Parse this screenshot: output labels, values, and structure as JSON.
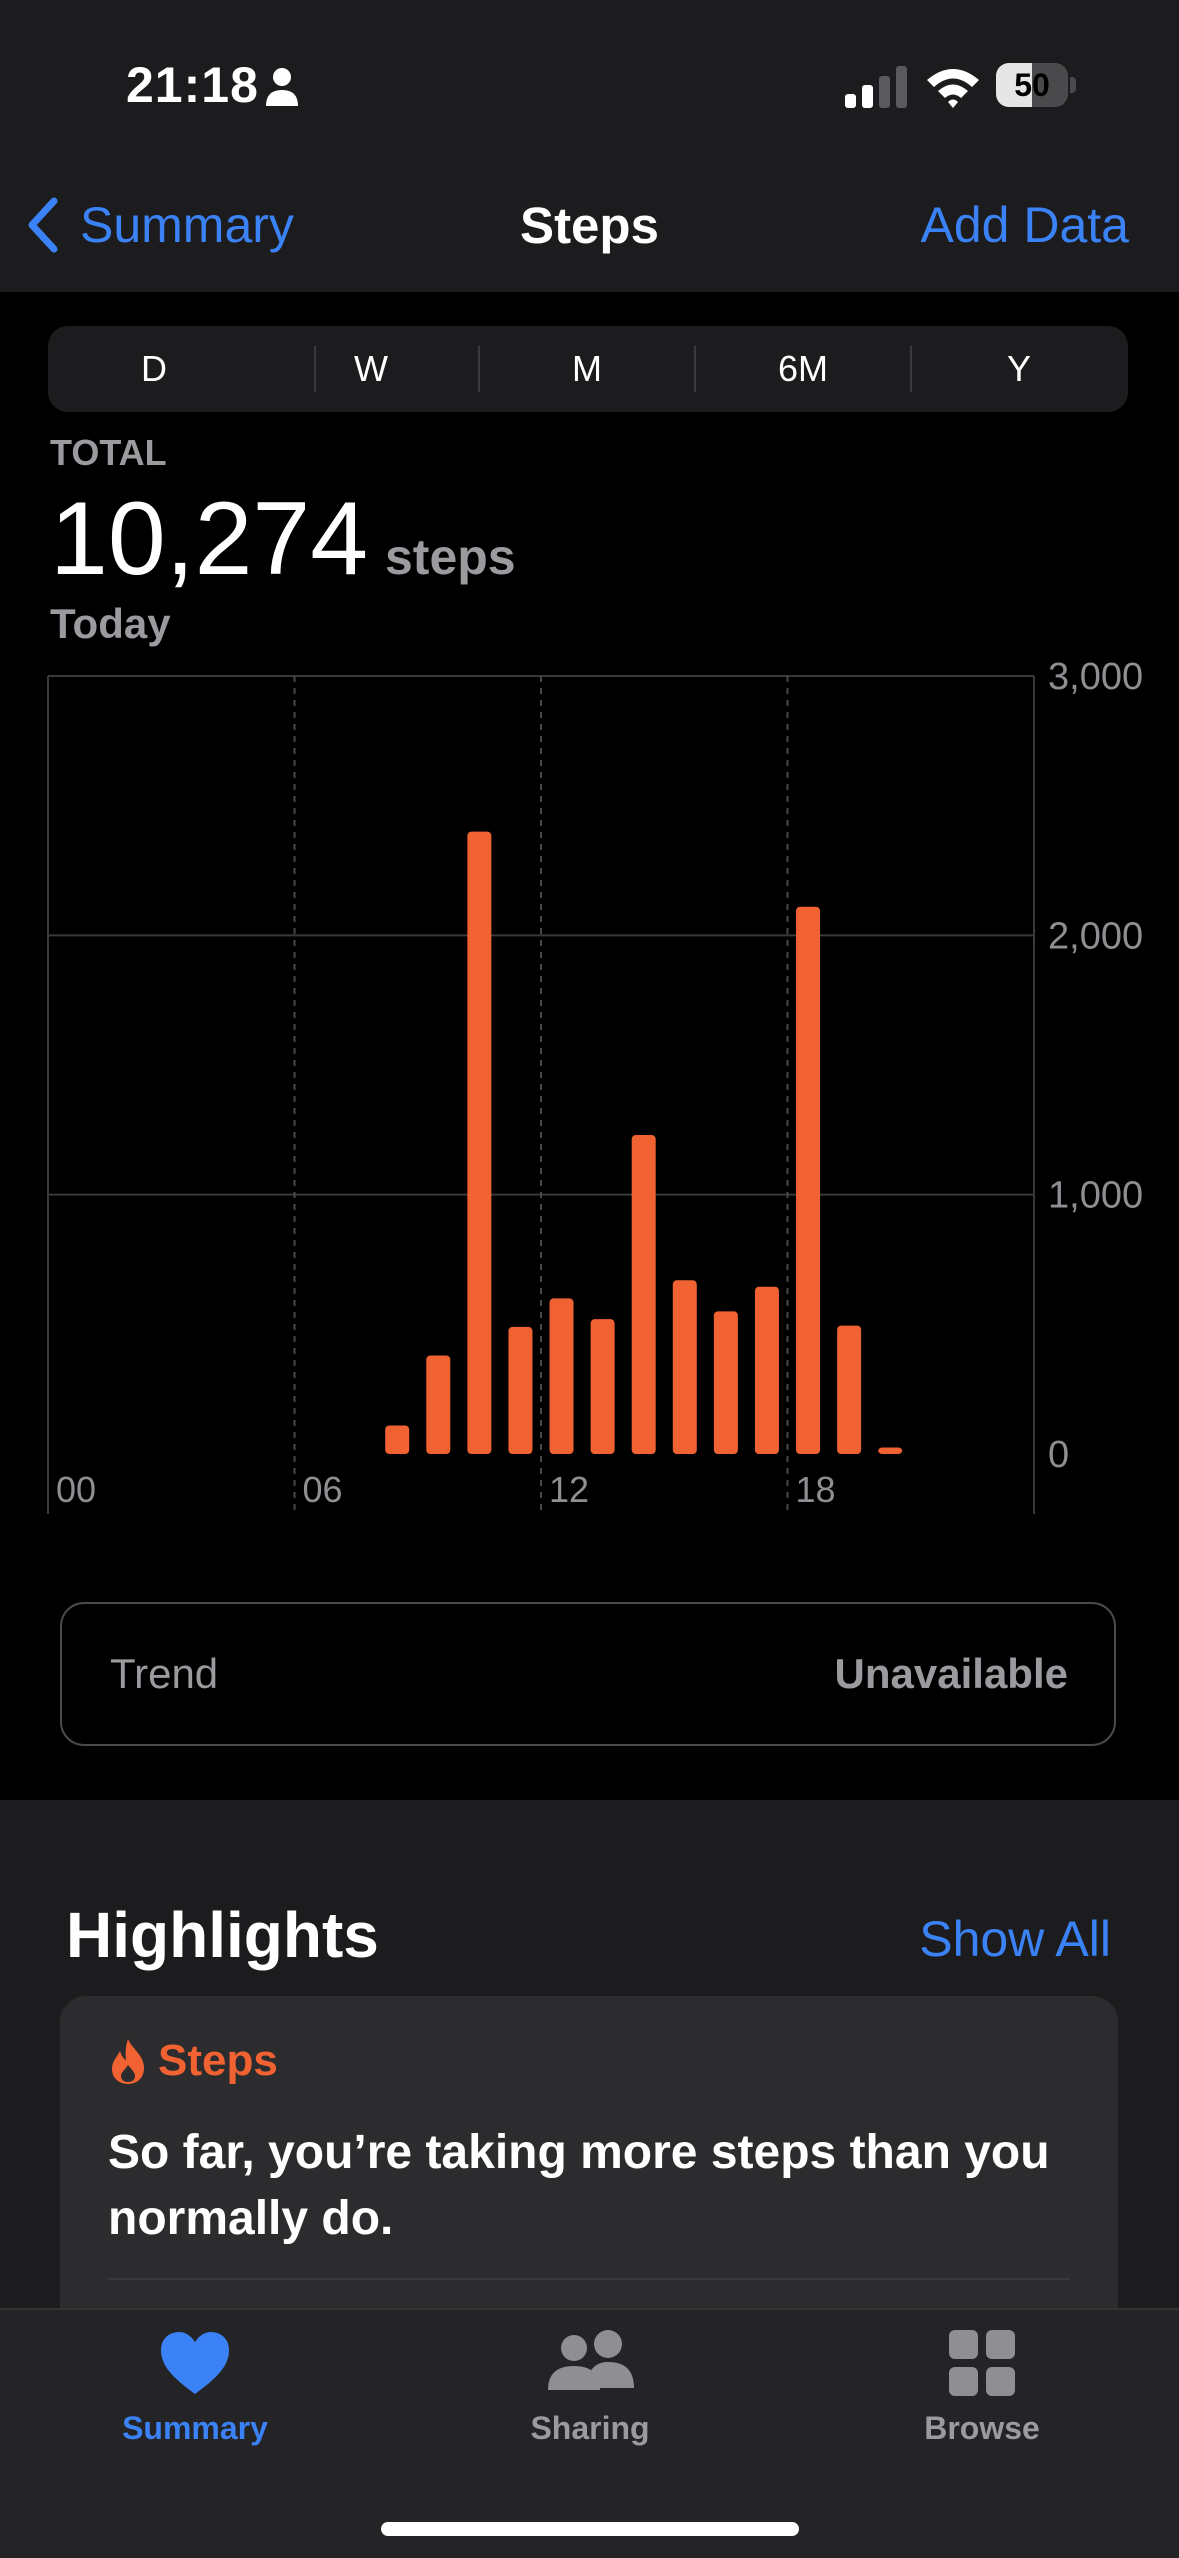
{
  "status_bar": {
    "time": "21:18",
    "battery": "50",
    "battery_level": 0.5
  },
  "nav": {
    "back_label": "Summary",
    "title": "Steps",
    "action_label": "Add Data"
  },
  "segments": {
    "items": [
      "D",
      "W",
      "M",
      "6M",
      "Y"
    ],
    "selected": "D"
  },
  "total": {
    "label": "TOTAL",
    "value": "10,274",
    "unit": "steps",
    "date": "Today"
  },
  "chart_data": {
    "type": "bar",
    "x_ticks": [
      "00",
      "06",
      "12",
      "18"
    ],
    "y_ticks": [
      "0",
      "1,000",
      "2,000",
      "3,000"
    ],
    "ylim": [
      0,
      3000
    ],
    "xlim_hours": [
      0,
      24
    ],
    "color": "#f06232",
    "hours": [
      8,
      9,
      10,
      11,
      12,
      13,
      14,
      15,
      16,
      17,
      18,
      19,
      20
    ],
    "values": [
      110,
      380,
      2400,
      490,
      600,
      520,
      1230,
      670,
      550,
      645,
      2110,
      495,
      25
    ]
  },
  "trend": {
    "label": "Trend",
    "value": "Unavailable"
  },
  "highlights": {
    "title": "Highlights",
    "show_all": "Show All",
    "card": {
      "category": "Steps",
      "text": "So far, you’re taking more steps than you normally do."
    }
  },
  "tabbar": {
    "items": [
      {
        "label": "Summary",
        "icon": "heart-icon",
        "active": true
      },
      {
        "label": "Sharing",
        "icon": "people-icon",
        "active": false
      },
      {
        "label": "Browse",
        "icon": "grid-icon",
        "active": false
      }
    ]
  },
  "colors": {
    "accent": "#3b82f6",
    "orange": "#f06232",
    "gray": "#9a9a9f"
  }
}
